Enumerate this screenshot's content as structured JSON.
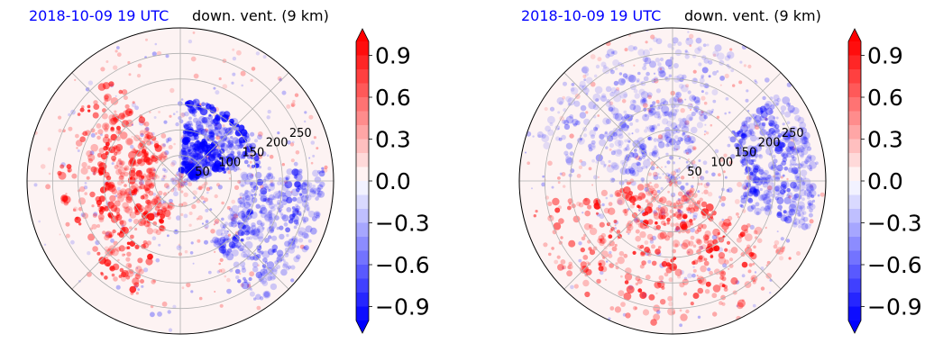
{
  "colors": {
    "title_date": "#0000ff",
    "positive": "#ff0000",
    "negative": "#0000ff",
    "neutral": "#ffffff"
  },
  "panels": [
    {
      "title_date": "2018-10-09 19 UTC",
      "title_var": "down. vent. (9 km)"
    },
    {
      "title_date": "2018-10-09 19 UTC",
      "title_var": "down. vent. (9 km)"
    }
  ],
  "chart_data": [
    {
      "type": "heatmap",
      "projection": "polar",
      "title_left": "2018-10-09 19 UTC",
      "title_right": "down. vent. (9 km)",
      "radial_ticks": [
        "50",
        "100",
        "150",
        "200",
        "250"
      ],
      "radial_tick_values": [
        50,
        100,
        150,
        200,
        250
      ],
      "rlim": [
        0,
        300
      ],
      "colorbar": {
        "ticks": [
          "0.9",
          "0.6",
          "0.3",
          "0.0",
          "−0.3",
          "−0.6",
          "−0.9"
        ],
        "range": [
          -1.0,
          1.0
        ],
        "extend": "both",
        "cmap": "bwr"
      },
      "features": [
        {
          "sign": "positive",
          "strength": 0.9,
          "theta_from": 120,
          "theta_to": 250,
          "r_from": 50,
          "r_to": 240
        },
        {
          "sign": "negative",
          "strength": 0.9,
          "theta_from": 10,
          "theta_to": 85,
          "r_from": 20,
          "r_to": 160
        },
        {
          "sign": "negative",
          "strength": 0.6,
          "theta_from": -60,
          "theta_to": 5,
          "r_from": 120,
          "r_to": 280
        }
      ],
      "grid": true
    },
    {
      "type": "heatmap",
      "projection": "polar",
      "title_left": "2018-10-09 19 UTC",
      "title_right": "down. vent. (9 km)",
      "radial_ticks": [
        "50",
        "100",
        "150",
        "200",
        "250"
      ],
      "radial_tick_values": [
        50,
        100,
        150,
        200,
        250
      ],
      "rlim": [
        0,
        300
      ],
      "colorbar": {
        "ticks": [
          "0.9",
          "0.6",
          "0.3",
          "0.0",
          "−0.3",
          "−0.6",
          "−0.9"
        ],
        "range": [
          -1.0,
          1.0
        ],
        "extend": "both",
        "cmap": "bwr"
      },
      "features": [
        {
          "sign": "positive",
          "strength": 0.9,
          "theta_from": 190,
          "theta_to": 330,
          "r_from": 40,
          "r_to": 280
        },
        {
          "sign": "negative",
          "strength": 0.4,
          "theta_from": 60,
          "theta_to": 170,
          "r_from": 60,
          "r_to": 280
        },
        {
          "sign": "negative",
          "strength": 0.6,
          "theta_from": -20,
          "theta_to": 40,
          "r_from": 140,
          "r_to": 280
        }
      ],
      "grid": true
    }
  ]
}
